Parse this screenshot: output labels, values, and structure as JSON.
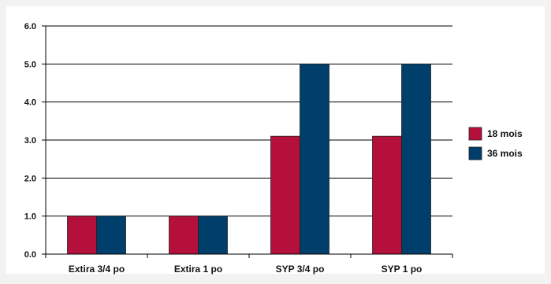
{
  "chart_data": {
    "type": "bar",
    "categories": [
      "Extira 3/4 po",
      "Extira 1 po",
      "SYP 3/4 po",
      "SYP 1 po"
    ],
    "series": [
      {
        "name": "18 mois",
        "color": "#b5103c",
        "values": [
          1.0,
          1.0,
          3.1,
          3.1
        ]
      },
      {
        "name": "36 mois",
        "color": "#003f6b",
        "values": [
          1.0,
          1.0,
          5.0,
          5.0
        ]
      }
    ],
    "y_ticks": [
      "0.0",
      "1.0",
      "2.0",
      "3.0",
      "4.0",
      "5.0",
      "6.0"
    ],
    "ylim": [
      0,
      6
    ],
    "grid": true,
    "legend_position": "right",
    "title": "",
    "xlabel": "",
    "ylabel": ""
  }
}
